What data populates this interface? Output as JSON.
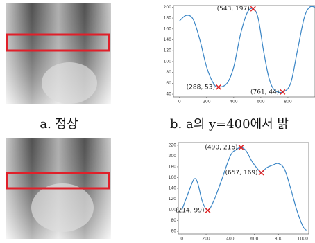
{
  "captions": [
    "a. 정상",
    "b. a의 y=400에서 밝"
  ],
  "chart_data": [
    {
      "type": "line",
      "xlim": [
        -45,
        1000
      ],
      "ylim": [
        35,
        203
      ],
      "xticks": [
        0,
        200,
        400,
        600,
        800
      ],
      "yticks": [
        40,
        60,
        80,
        100,
        120,
        140,
        160,
        180,
        200
      ],
      "x": [
        0,
        50,
        100,
        150,
        200,
        250,
        288,
        350,
        400,
        450,
        500,
        543,
        580,
        620,
        660,
        700,
        761,
        820,
        870,
        920,
        960,
        1000
      ],
      "series": [
        {
          "color": "#3b86c6",
          "values": [
            175,
            185,
            178,
            140,
            90,
            60,
            53,
            60,
            90,
            150,
            190,
            197,
            180,
            120,
            70,
            48,
            44,
            60,
            120,
            180,
            200,
            200
          ]
        }
      ],
      "markers": {
        "color": "#e02020",
        "x": [
          543,
          288,
          761
        ],
        "y": [
          197,
          53,
          44
        ],
        "value_labels": [
          "(543, 197)",
          "(288, 53)",
          "(761, 44)"
        ]
      }
    },
    {
      "type": "line",
      "xlim": [
        -30,
        1050
      ],
      "ylim": [
        55,
        225
      ],
      "xticks": [
        0,
        200,
        400,
        600,
        800,
        1000
      ],
      "yticks": [
        60,
        80,
        100,
        120,
        140,
        160,
        180,
        200,
        220
      ],
      "x": [
        0,
        50,
        100,
        130,
        170,
        214,
        260,
        320,
        400,
        450,
        490,
        530,
        580,
        630,
        657,
        700,
        750,
        800,
        850,
        900,
        950,
        1000,
        1030
      ],
      "series": [
        {
          "color": "#3b86c6",
          "values": [
            100,
            130,
            157,
            150,
            115,
            99,
            115,
            150,
            200,
            212,
            216,
            210,
            190,
            175,
            169,
            178,
            183,
            186,
            175,
            140,
            100,
            70,
            62
          ]
        }
      ],
      "markers": {
        "color": "#e02020",
        "x": [
          490,
          657,
          214
        ],
        "y": [
          216,
          169,
          99
        ],
        "value_labels": [
          "(490, 216)",
          "(657, 169)",
          "(214, 99)"
        ]
      }
    }
  ]
}
